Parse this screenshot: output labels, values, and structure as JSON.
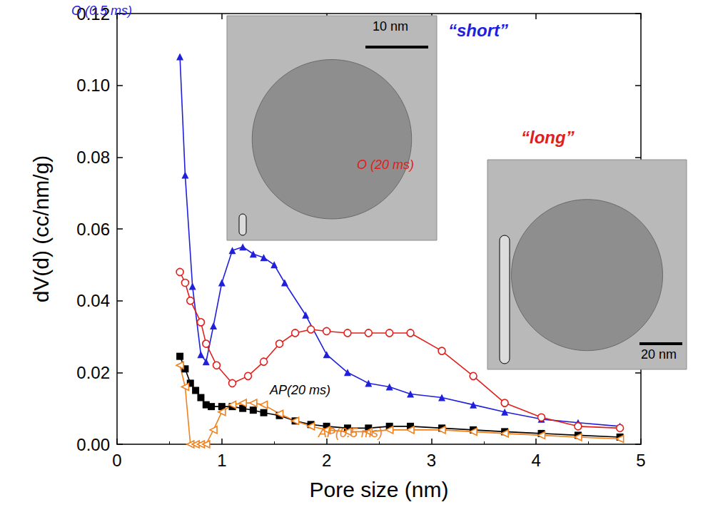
{
  "chart_data": {
    "type": "line",
    "x_label": "Pore size (nm)",
    "y_label": "dV(d) (cc/nm/g)",
    "xlim": [
      0,
      5
    ],
    "xticks": [
      0,
      1,
      2,
      3,
      4,
      5
    ],
    "ylim": [
      0,
      0.12
    ],
    "yticks": [
      {
        "value": 0,
        "label": "0.00"
      },
      {
        "value": 0.02,
        "label": "0.02"
      },
      {
        "value": 0.04,
        "label": "0.04"
      },
      {
        "value": 0.06,
        "label": "0.06"
      },
      {
        "value": 0.08,
        "label": "0.08"
      },
      {
        "value": 0.1,
        "label": "0.10"
      },
      {
        "value": 0.12,
        "label": "0.12"
      }
    ],
    "grid": false,
    "series": [
      {
        "name": "O (0.5 ms)",
        "color": "#1f1fdc",
        "marker": "triangle",
        "line_style": "solid",
        "x": [
          0.6,
          0.65,
          0.72,
          0.8,
          0.85,
          0.92,
          1.0,
          1.1,
          1.2,
          1.3,
          1.4,
          1.5,
          1.6,
          1.8,
          2.0,
          2.2,
          2.4,
          2.6,
          2.8,
          3.1,
          3.4,
          3.7,
          4.05,
          4.4,
          4.8
        ],
        "values": [
          0.108,
          0.075,
          0.044,
          0.025,
          0.023,
          0.033,
          0.045,
          0.054,
          0.055,
          0.053,
          0.052,
          0.05,
          0.045,
          0.036,
          0.025,
          0.02,
          0.017,
          0.016,
          0.014,
          0.013,
          0.011,
          0.009,
          0.007,
          0.006,
          0.005
        ]
      },
      {
        "name": "O (20 ms)",
        "color": "#e0201c",
        "marker": "circle_open",
        "line_style": "solid",
        "x": [
          0.6,
          0.65,
          0.7,
          0.8,
          0.85,
          0.95,
          1.1,
          1.25,
          1.4,
          1.55,
          1.7,
          1.85,
          2.0,
          2.2,
          2.4,
          2.6,
          2.8,
          3.1,
          3.4,
          3.7,
          4.05,
          4.4,
          4.8
        ],
        "values": [
          0.048,
          0.045,
          0.04,
          0.034,
          0.028,
          0.022,
          0.017,
          0.019,
          0.023,
          0.028,
          0.031,
          0.032,
          0.0315,
          0.031,
          0.031,
          0.031,
          0.031,
          0.026,
          0.019,
          0.0115,
          0.0075,
          0.005,
          0.0045
        ]
      },
      {
        "name": "AP(20 ms)",
        "color": "#000000",
        "marker": "square",
        "line_style": "solid",
        "x": [
          0.6,
          0.65,
          0.7,
          0.75,
          0.8,
          0.85,
          0.9,
          1.0,
          1.1,
          1.2,
          1.3,
          1.4,
          1.55,
          1.7,
          1.85,
          2.0,
          2.2,
          2.4,
          2.6,
          2.8,
          3.1,
          3.4,
          3.7,
          4.05,
          4.4,
          4.8
        ],
        "values": [
          0.0245,
          0.021,
          0.017,
          0.015,
          0.013,
          0.011,
          0.0105,
          0.0105,
          0.0105,
          0.01,
          0.0095,
          0.0088,
          0.008,
          0.0065,
          0.0055,
          0.005,
          0.0045,
          0.0045,
          0.005,
          0.005,
          0.0045,
          0.004,
          0.0035,
          0.003,
          0.0025,
          0.002
        ]
      },
      {
        "name": "AP(0.5 ms)",
        "color": "#f0801c",
        "marker": "triangle_left_open",
        "line_style": "solid",
        "x": [
          0.6,
          0.65,
          0.7,
          0.75,
          0.8,
          0.85,
          0.92,
          1.0,
          1.1,
          1.2,
          1.3,
          1.4,
          1.55,
          1.7,
          1.85,
          2.0,
          2.2,
          2.4,
          2.6,
          2.8,
          3.1,
          3.4,
          3.7,
          4.05,
          4.4,
          4.8
        ],
        "values": [
          0.022,
          0.016,
          0.0,
          0.0,
          0.0,
          0.0,
          0.004,
          0.009,
          0.011,
          0.0115,
          0.0115,
          0.011,
          0.0085,
          0.0065,
          0.005,
          0.004,
          0.0035,
          0.0035,
          0.004,
          0.004,
          0.004,
          0.0035,
          0.003,
          0.0025,
          0.002,
          0.0015
        ]
      }
    ],
    "insets": [
      {
        "title": "“short”",
        "scale_bar": "10 nm",
        "color": "#1f1fdc"
      },
      {
        "title": "“long”",
        "scale_bar": "20 nm",
        "color": "#e0201c"
      }
    ]
  }
}
